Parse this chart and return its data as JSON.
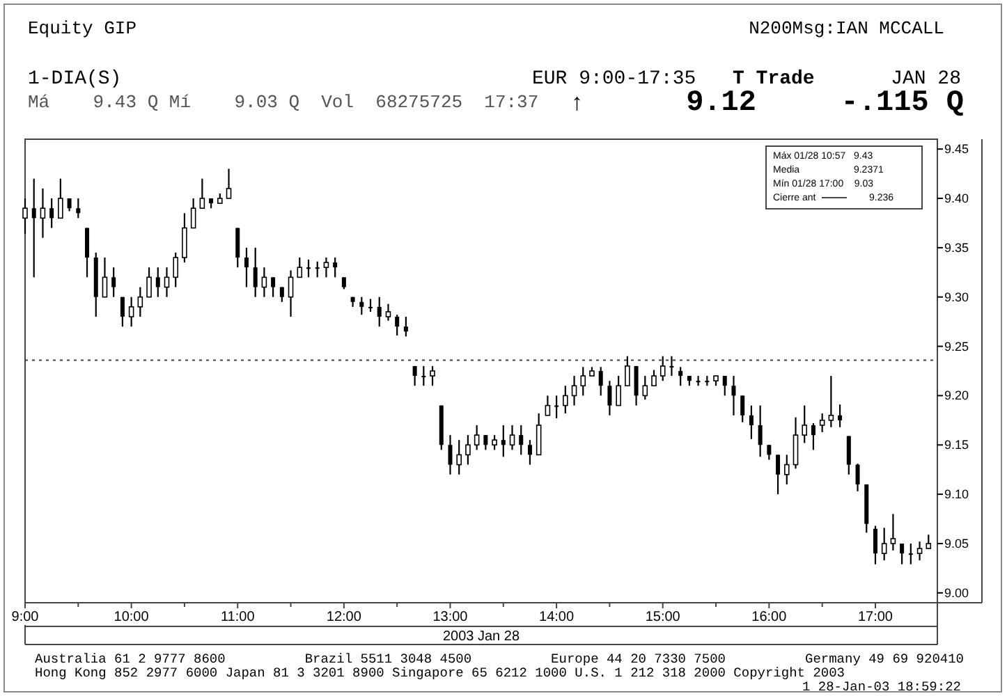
{
  "chart_data": {
    "type": "candlestick",
    "title": "Equity GIP",
    "xlabel": "2003 Jan 28",
    "color": "#000000",
    "x": [
      9,
      9.0833,
      9.1667,
      9.25,
      9.3333,
      9.4167,
      9.5,
      9.5833,
      9.6667,
      9.75,
      9.8333,
      9.9167,
      10,
      10.0833,
      10.1667,
      10.25,
      10.3333,
      10.4167,
      10.5,
      10.5833,
      10.6667,
      10.75,
      10.8333,
      10.9167,
      11,
      11.0833,
      11.1667,
      11.25,
      11.3333,
      11.4167,
      11.5,
      11.5833,
      11.6667,
      11.75,
      11.8333,
      11.9167,
      12,
      12.0833,
      12.1667,
      12.25,
      12.3333,
      12.4167,
      12.5,
      12.5833,
      12.6667,
      12.75,
      12.8333,
      12.9167,
      13,
      13.0833,
      13.1667,
      13.25,
      13.3333,
      13.4167,
      13.5,
      13.5833,
      13.6667,
      13.75,
      13.8333,
      13.9167,
      14,
      14.0833,
      14.1667,
      14.25,
      14.3333,
      14.4167,
      14.5,
      14.5833,
      14.6667,
      14.75,
      14.8333,
      14.9167,
      15,
      15.0833,
      15.1667,
      15.25,
      15.3333,
      15.4167,
      15.5,
      15.5833,
      15.6667,
      15.75,
      15.8333,
      15.9167,
      16,
      16.0833,
      16.1667,
      16.25,
      16.3333,
      16.4167,
      16.5,
      16.5833,
      16.6667,
      16.75,
      16.8333,
      16.9167,
      17,
      17.0833,
      17.1667,
      17.25,
      17.3333,
      17.4167,
      17.5
    ],
    "ohlc": [
      [
        9.38,
        9.4,
        9.364,
        9.39
      ],
      [
        9.39,
        9.42,
        9.32,
        9.38
      ],
      [
        9.38,
        9.41,
        9.36,
        9.39
      ],
      [
        9.39,
        9.4,
        9.37,
        9.38
      ],
      [
        9.38,
        9.42,
        9.38,
        9.4
      ],
      [
        9.4,
        9.4,
        9.387,
        9.39
      ],
      [
        9.39,
        9.4,
        9.38,
        9.385
      ],
      [
        9.37,
        9.37,
        9.32,
        9.34
      ],
      [
        9.34,
        9.345,
        9.28,
        9.3
      ],
      [
        9.3,
        9.34,
        9.3,
        9.32
      ],
      [
        9.32,
        9.33,
        9.3,
        9.31
      ],
      [
        9.3,
        9.3,
        9.27,
        9.28
      ],
      [
        9.28,
        9.3,
        9.27,
        9.29
      ],
      [
        9.29,
        9.31,
        9.28,
        9.3
      ],
      [
        9.3,
        9.33,
        9.3,
        9.32
      ],
      [
        9.32,
        9.33,
        9.3,
        9.31
      ],
      [
        9.31,
        9.33,
        9.3,
        9.32
      ],
      [
        9.32,
        9.345,
        9.31,
        9.34
      ],
      [
        9.34,
        9.385,
        9.335,
        9.37
      ],
      [
        9.37,
        9.4,
        9.37,
        9.39
      ],
      [
        9.39,
        9.42,
        9.39,
        9.4
      ],
      [
        9.4,
        9.4,
        9.39,
        9.395
      ],
      [
        9.395,
        9.405,
        9.395,
        9.4
      ],
      [
        9.4,
        9.43,
        9.4,
        9.41
      ],
      [
        9.37,
        9.37,
        9.33,
        9.34
      ],
      [
        9.34,
        9.35,
        9.31,
        9.33
      ],
      [
        9.33,
        9.35,
        9.3,
        9.31
      ],
      [
        9.31,
        9.33,
        9.3,
        9.32
      ],
      [
        9.32,
        9.32,
        9.3,
        9.31
      ],
      [
        9.31,
        9.31,
        9.295,
        9.3
      ],
      [
        9.3,
        9.327,
        9.28,
        9.32
      ],
      [
        9.32,
        9.34,
        9.32,
        9.33
      ],
      [
        9.33,
        9.338,
        9.32,
        9.33
      ],
      [
        9.33,
        9.336,
        9.32,
        9.33
      ],
      [
        9.33,
        9.34,
        9.32,
        9.335
      ],
      [
        9.335,
        9.34,
        9.32,
        9.33
      ],
      [
        9.32,
        9.32,
        9.308,
        9.31
      ],
      [
        9.3,
        9.3,
        9.29,
        9.295
      ],
      [
        9.295,
        9.3,
        9.282,
        9.29
      ],
      [
        9.29,
        9.298,
        9.285,
        9.29
      ],
      [
        9.29,
        9.3,
        9.27,
        9.28
      ],
      [
        9.28,
        9.293,
        9.276,
        9.285
      ],
      [
        9.28,
        9.282,
        9.261,
        9.27
      ],
      [
        9.27,
        9.28,
        9.26,
        9.265
      ],
      [
        9.23,
        9.23,
        9.21,
        9.22
      ],
      [
        9.22,
        9.23,
        9.21,
        9.22
      ],
      [
        9.22,
        9.23,
        9.21,
        9.225
      ],
      [
        9.19,
        9.19,
        9.145,
        9.15
      ],
      [
        9.15,
        9.16,
        9.12,
        9.13
      ],
      [
        9.13,
        9.155,
        9.12,
        9.14
      ],
      [
        9.14,
        9.16,
        9.13,
        9.15
      ],
      [
        9.15,
        9.17,
        9.145,
        9.16
      ],
      [
        9.16,
        9.16,
        9.145,
        9.15
      ],
      [
        9.15,
        9.16,
        9.145,
        9.155
      ],
      [
        9.155,
        9.17,
        9.138,
        9.15
      ],
      [
        9.15,
        9.17,
        9.145,
        9.16
      ],
      [
        9.16,
        9.17,
        9.14,
        9.15
      ],
      [
        9.15,
        9.155,
        9.13,
        9.14
      ],
      [
        9.14,
        9.182,
        9.14,
        9.17
      ],
      [
        9.18,
        9.2,
        9.18,
        9.19
      ],
      [
        9.19,
        9.2,
        9.177,
        9.19
      ],
      [
        9.19,
        9.21,
        9.182,
        9.2
      ],
      [
        9.2,
        9.22,
        9.19,
        9.21
      ],
      [
        9.21,
        9.229,
        9.2,
        9.22
      ],
      [
        9.22,
        9.229,
        9.22,
        9.225
      ],
      [
        9.225,
        9.229,
        9.2,
        9.21
      ],
      [
        9.21,
        9.215,
        9.18,
        9.19
      ],
      [
        9.19,
        9.22,
        9.19,
        9.21
      ],
      [
        9.21,
        9.24,
        9.21,
        9.23
      ],
      [
        9.23,
        9.23,
        9.19,
        9.2
      ],
      [
        9.2,
        9.22,
        9.196,
        9.21
      ],
      [
        9.21,
        9.226,
        9.21,
        9.22
      ],
      [
        9.22,
        9.24,
        9.215,
        9.23
      ],
      [
        9.23,
        9.24,
        9.22,
        9.23
      ],
      [
        9.225,
        9.229,
        9.21,
        9.22
      ],
      [
        9.22,
        9.22,
        9.21,
        9.215
      ],
      [
        9.215,
        9.22,
        9.21,
        9.215
      ],
      [
        9.215,
        9.22,
        9.21,
        9.215
      ],
      [
        9.215,
        9.22,
        9.21,
        9.22
      ],
      [
        9.22,
        9.22,
        9.2,
        9.21
      ],
      [
        9.21,
        9.22,
        9.18,
        9.2
      ],
      [
        9.2,
        9.2,
        9.173,
        9.18
      ],
      [
        9.18,
        9.19,
        9.156,
        9.17
      ],
      [
        9.17,
        9.19,
        9.138,
        9.15
      ],
      [
        9.15,
        9.15,
        9.135,
        9.14
      ],
      [
        9.14,
        9.14,
        9.1,
        9.12
      ],
      [
        9.12,
        9.14,
        9.11,
        9.13
      ],
      [
        9.13,
        9.178,
        9.126,
        9.16
      ],
      [
        9.16,
        9.19,
        9.152,
        9.17
      ],
      [
        9.17,
        9.172,
        9.145,
        9.16
      ],
      [
        9.17,
        9.182,
        9.163,
        9.175
      ],
      [
        9.175,
        9.22,
        9.168,
        9.18
      ],
      [
        9.18,
        9.191,
        9.168,
        9.175
      ],
      [
        9.159,
        9.159,
        9.12,
        9.13
      ],
      [
        9.13,
        9.131,
        9.103,
        9.11
      ],
      [
        9.11,
        9.11,
        9.061,
        9.07
      ],
      [
        9.065,
        9.068,
        9.029,
        9.04
      ],
      [
        9.04,
        9.066,
        9.033,
        9.05
      ],
      [
        9.05,
        9.08,
        9.043,
        9.055
      ],
      [
        9.05,
        9.05,
        9.029,
        9.04
      ],
      [
        9.04,
        9.05,
        9.029,
        9.04
      ],
      [
        9.04,
        9.052,
        9.033,
        9.045
      ],
      [
        9.045,
        9.059,
        9.045,
        9.05
      ]
    ],
    "xlim": [
      9,
      17.5833
    ],
    "xticks": [
      {
        "value": 9,
        "label": "9:00"
      },
      {
        "value": 9.5,
        "label": null
      },
      {
        "value": 10,
        "label": "10:00"
      },
      {
        "value": 10.5,
        "label": null
      },
      {
        "value": 11,
        "label": "11:00"
      },
      {
        "value": 11.5,
        "label": null
      },
      {
        "value": 12,
        "label": "12:00"
      },
      {
        "value": 12.5,
        "label": null
      },
      {
        "value": 13,
        "label": "13:00"
      },
      {
        "value": 13.5,
        "label": null
      },
      {
        "value": 14,
        "label": "14:00"
      },
      {
        "value": 14.5,
        "label": null
      },
      {
        "value": 15,
        "label": "15:00"
      },
      {
        "value": 15.5,
        "label": null
      },
      {
        "value": 16,
        "label": "16:00"
      },
      {
        "value": 16.5,
        "label": null
      },
      {
        "value": 17,
        "label": "17:00"
      }
    ],
    "ylim": [
      8.99,
      9.46
    ],
    "yticks": [
      {
        "value": 9,
        "label": "9.00"
      },
      9.05,
      {
        "value": 9.1,
        "label": "9.10"
      },
      9.15,
      {
        "value": 9.2,
        "label": "9.20"
      },
      9.25,
      {
        "value": 9.3,
        "label": "9.30"
      },
      9.35,
      {
        "value": 9.4,
        "label": "9.40"
      },
      9.45
    ],
    "ref_lines": [
      {
        "axis": "y",
        "value": 9.236,
        "label": "Cierre ant",
        "line_style": "dotted"
      }
    ],
    "annotations": [
      "N200Msg:IAN MCCALL",
      "1-DIA(S)",
      "EUR 9:00-17:35",
      "T Trade",
      "JAN 28",
      "Má    9.43 Q Mí    9.03 Q  Vol  68275725  17:37",
      "↑",
      "9.12",
      "-.115 Q",
      "Máx 01/28 10:57   9.43",
      "Media                    9.2371",
      "Mín 01/28 17:00    9.03",
      "Australia 61 2 9777 8600          Brazil 5511 3048 4500          Europe 44 20 7330 7500          Germany 49 69 920410",
      "Hong Kong 852 2977 6000 Japan 81 3 3201 8900 Singapore 65 6212 1000 U.S. 1 212 318 2000 Copyright 2003",
      "1 28-Jan-03 18:59:22",
      "9.236"
    ]
  }
}
